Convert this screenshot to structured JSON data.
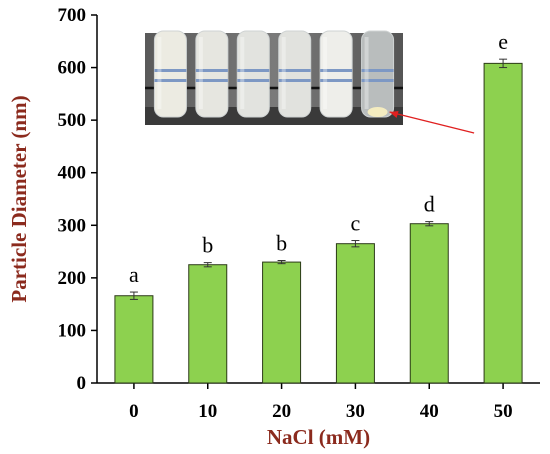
{
  "chart_data": {
    "type": "bar",
    "categories": [
      "0",
      "10",
      "20",
      "30",
      "40",
      "50"
    ],
    "values": [
      166,
      225,
      230,
      265,
      303,
      608
    ],
    "errors": [
      7,
      4,
      3,
      6,
      4,
      8
    ],
    "significance_labels": [
      "a",
      "b",
      "b",
      "c",
      "d",
      "e"
    ],
    "xlabel": "NaCl (mM)",
    "ylabel": "Particle Diameter (nm)",
    "ylim": [
      0,
      700
    ],
    "yticks": [
      0,
      100,
      200,
      300,
      400,
      500,
      600,
      700
    ],
    "grid": false,
    "bar_color": "#8dd14f",
    "bar_edge_color": "#2b3a17",
    "axis_title_color": "#c0392b",
    "annotation_arrow_color": "#e02020",
    "inset": {
      "description": "photo-of-six-vials",
      "vial_count": 6,
      "sediment_vial_index": 5
    }
  }
}
